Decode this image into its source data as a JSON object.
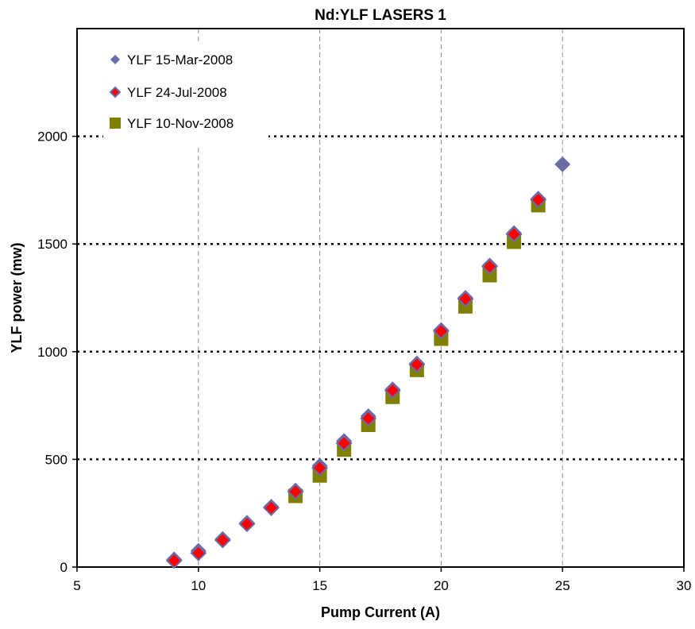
{
  "chart_data": {
    "type": "scatter",
    "title": "Nd:YLF LASERS 1",
    "xlabel": "Pump Current (A)",
    "ylabel": "YLF power (mw)",
    "xlim": [
      5,
      30
    ],
    "ylim": [
      0,
      2500
    ],
    "x_ticks": [
      5,
      10,
      15,
      20,
      25,
      30
    ],
    "y_ticks": [
      0,
      500,
      1000,
      1500,
      2000
    ],
    "x_grid": "dashed vertical",
    "y_grid": "dotted horizontal",
    "legend_position": "top-left",
    "series": [
      {
        "name": "YLF 15-Mar-2008",
        "marker": "diamond",
        "color": "#6B6BA8",
        "x": [
          9,
          10,
          11,
          12,
          13,
          14,
          15,
          16,
          17,
          18,
          19,
          20,
          21,
          22,
          23,
          24,
          25
        ],
        "y": [
          35,
          75,
          130,
          205,
          280,
          355,
          470,
          585,
          700,
          825,
          945,
          1100,
          1250,
          1400,
          1550,
          1710,
          1870
        ]
      },
      {
        "name": "YLF 24-Jul-2008",
        "marker": "diamond",
        "color": "#FF0000",
        "edge_color": "#6B6BA8",
        "x": [
          9,
          10,
          11,
          12,
          13,
          14,
          15,
          16,
          17,
          18,
          19,
          20,
          21,
          22,
          23,
          24
        ],
        "y": [
          30,
          65,
          125,
          200,
          275,
          350,
          460,
          575,
          690,
          820,
          940,
          1095,
          1245,
          1395,
          1545,
          1705
        ]
      },
      {
        "name": "YLF 10-Nov-2008",
        "marker": "square",
        "color": "#808000",
        "x": [
          14,
          15,
          16,
          17,
          18,
          19,
          20,
          21,
          22,
          23,
          24
        ],
        "y": [
          330,
          425,
          545,
          660,
          790,
          915,
          1060,
          1210,
          1355,
          1510,
          1680
        ]
      }
    ]
  }
}
